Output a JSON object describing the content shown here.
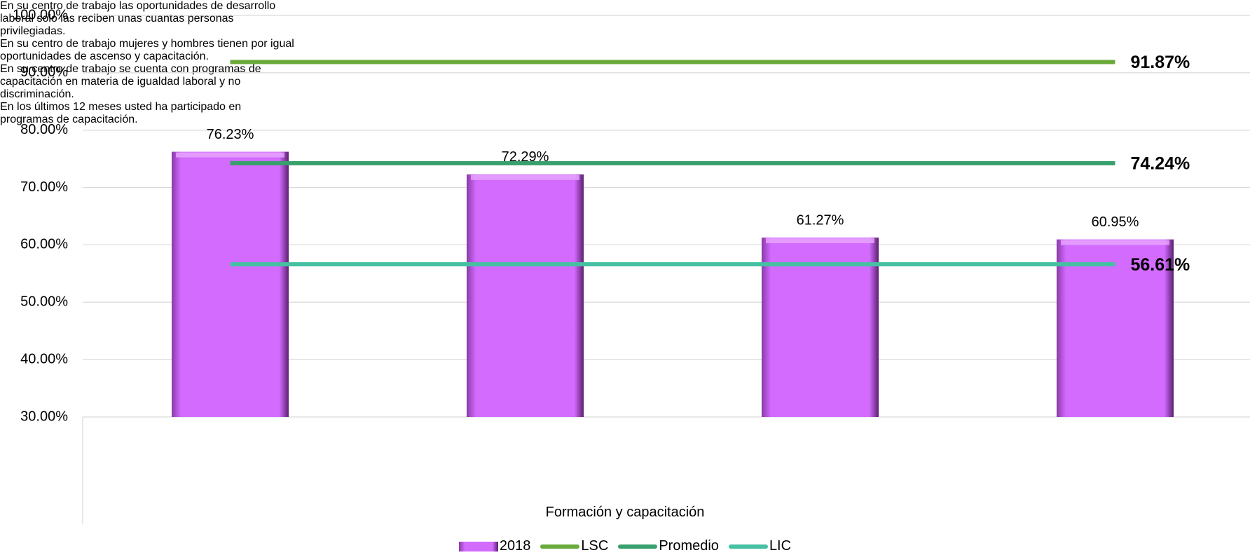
{
  "chart_data": {
    "type": "bar",
    "categories": [
      "En su centro de trabajo las oportunidades de desarrollo laboral solo las reciben unas cuantas personas privilegiadas.",
      "En su centro de trabajo mujeres y hombres tienen por igual oportunidades de ascenso y capacitación.",
      "En su centro de trabajo se cuenta con programas de capacitación en materia de igualdad laboral y no discriminación.",
      "En los últimos 12 meses usted ha participado en programas de capacitación."
    ],
    "xlabel": "Formación y capacitación",
    "series": [
      {
        "name": "2018",
        "type": "bar",
        "color": "#d36bff",
        "values": [
          76.23,
          72.29,
          61.27,
          60.95
        ],
        "value_labels": [
          "76.23%",
          "72.29%",
          "61.27%",
          "60.95%"
        ]
      },
      {
        "name": "LSC",
        "type": "line",
        "color": "#6aaa3a",
        "label_color": "#6aaa3a",
        "values": [
          91.87,
          91.87,
          91.87,
          91.87
        ],
        "value_labels": [
          null,
          null,
          null,
          "91.87%"
        ]
      },
      {
        "name": "Promedio",
        "type": "line",
        "color": "#38a06c",
        "label_color": "#8c7f4f",
        "values": [
          74.24,
          74.24,
          74.24,
          74.24
        ],
        "value_labels": [
          null,
          null,
          null,
          "74.24%"
        ]
      },
      {
        "name": "LIC",
        "type": "line",
        "color": "#46c0a2",
        "label_color": "#4cc2a4",
        "values": [
          56.61,
          56.61,
          56.61,
          56.61
        ],
        "value_labels": [
          null,
          null,
          null,
          "56.61%"
        ]
      }
    ],
    "ylim": [
      30,
      100
    ],
    "yticks": [
      {
        "value": 30,
        "label": "30.00%"
      },
      {
        "value": 40,
        "label": "40.00%"
      },
      {
        "value": 50,
        "label": "50.00%"
      },
      {
        "value": 60,
        "label": "60.00%"
      },
      {
        "value": 70,
        "label": "70.00%"
      },
      {
        "value": 80,
        "label": "80.00%"
      },
      {
        "value": 90,
        "label": "90.00%"
      },
      {
        "value": 100,
        "label": "100.00%"
      }
    ],
    "grid": true,
    "legend": "bottom"
  }
}
